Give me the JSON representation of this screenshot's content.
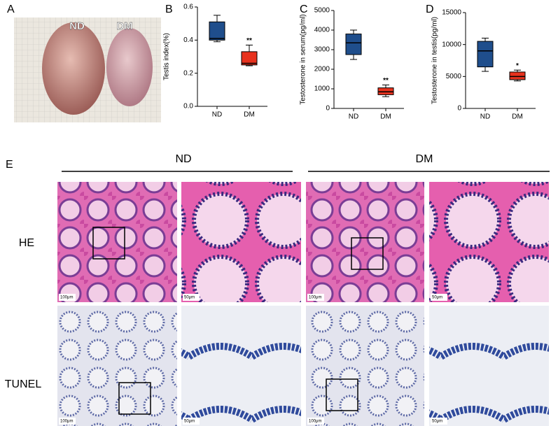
{
  "figure": {
    "panel_labels": [
      "A",
      "B",
      "C",
      "D",
      "E"
    ],
    "photo_labels": [
      "ND",
      "DM"
    ],
    "group_headers": [
      "ND",
      "DM"
    ],
    "row_labels": [
      "HE",
      "TUNEL"
    ],
    "scale_bars": [
      "100μm",
      "50μm",
      "100μm",
      "50μm",
      "100μm",
      "50μm",
      "100μm",
      "50μm"
    ]
  },
  "chart_data": [
    {
      "type": "box",
      "y_label": "Testis index(%)",
      "categories": [
        "ND",
        "DM"
      ],
      "colors": [
        "#1f4e8c",
        "#e8321e"
      ],
      "stats": {
        "min": [
          0.39,
          0.245
        ],
        "q1": [
          0.4,
          0.25
        ],
        "median": [
          0.41,
          0.26
        ],
        "q3": [
          0.51,
          0.33
        ],
        "max": [
          0.55,
          0.37
        ]
      },
      "annotations": [
        null,
        "**"
      ],
      "ylim": [
        0,
        0.6
      ],
      "yticks": [
        {
          "value": 0,
          "label": "0.0"
        },
        0.2,
        0.4,
        0.6
      ]
    },
    {
      "type": "box",
      "y_label": "Testosterone in serum(pg/ml)",
      "categories": [
        "ND",
        "DM"
      ],
      "colors": [
        "#1f4e8c",
        "#e8321e"
      ],
      "stats": {
        "min": [
          2500,
          600
        ],
        "q1": [
          2750,
          700
        ],
        "median": [
          3350,
          850
        ],
        "q3": [
          3800,
          1050
        ],
        "max": [
          4000,
          1200
        ]
      },
      "annotations": [
        null,
        "**"
      ],
      "ylim": [
        0,
        5000
      ],
      "yticks": [
        0,
        1000,
        2000,
        3000,
        4000,
        5000
      ]
    },
    {
      "type": "box",
      "y_label": "Testosterone in testis(pg/ml)",
      "categories": [
        "ND",
        "DM"
      ],
      "colors": [
        "#1f4e8c",
        "#e8321e"
      ],
      "stats": {
        "min": [
          5800,
          4300
        ],
        "q1": [
          6500,
          4500
        ],
        "median": [
          9000,
          5000
        ],
        "q3": [
          10500,
          5700
        ],
        "max": [
          11000,
          6000
        ]
      },
      "annotations": [
        null,
        "*"
      ],
      "ylim": [
        0,
        15000
      ],
      "yticks": [
        0,
        5000,
        10000,
        15000
      ]
    }
  ]
}
